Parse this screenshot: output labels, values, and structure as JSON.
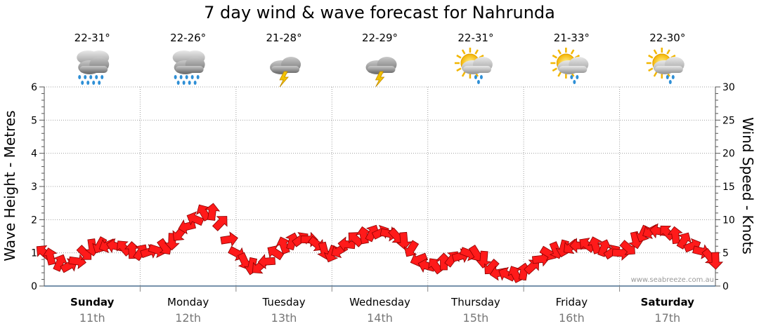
{
  "title": "7 day wind & wave forecast for Nahrunda",
  "credit": "www.seabreeze.com.au",
  "days": [
    {
      "name": "Sunday",
      "date": "11th",
      "temp": "22-31°",
      "icon": "rain-icon",
      "bold": true
    },
    {
      "name": "Monday",
      "date": "12th",
      "temp": "22-26°",
      "icon": "rain-icon",
      "bold": false
    },
    {
      "name": "Tuesday",
      "date": "13th",
      "temp": "21-28°",
      "icon": "storm-icon",
      "bold": false
    },
    {
      "name": "Wednesday",
      "date": "14th",
      "temp": "22-29°",
      "icon": "storm-icon",
      "bold": false
    },
    {
      "name": "Thursday",
      "date": "15th",
      "temp": "22-31°",
      "icon": "sun-shower-icon",
      "bold": false
    },
    {
      "name": "Friday",
      "date": "16th",
      "temp": "21-33°",
      "icon": "sun-rain-icon",
      "bold": false
    },
    {
      "name": "Saturday",
      "date": "17th",
      "temp": "22-30°",
      "icon": "sun-shower-icon",
      "bold": true
    }
  ],
  "chart_data": {
    "type": "line",
    "ylabel": "Wave Height - Metres",
    "y2label": "Wind Speed - Knots",
    "ylim": [
      0,
      6
    ],
    "y2lim": [
      0,
      30
    ],
    "yticks": [
      "0",
      "1",
      "2",
      "3",
      "4",
      "5",
      "6"
    ],
    "y2ticks": [
      "0",
      "5",
      "10",
      "15",
      "20",
      "25",
      "30"
    ],
    "grid": true,
    "series": [
      {
        "name": "Wind Speed",
        "color": "#ff0000",
        "x_days": [
          0.0,
          0.25,
          0.5,
          0.75,
          1.0,
          1.25,
          1.5,
          1.75,
          2.0,
          2.25,
          2.5,
          2.75,
          3.0,
          3.25,
          3.5,
          3.75,
          4.0,
          4.25,
          4.5,
          4.75,
          5.0,
          5.25,
          5.5,
          5.75,
          6.0,
          6.25,
          6.5,
          6.75,
          7.0
        ],
        "knots": [
          5,
          3,
          6,
          6,
          5,
          6,
          9,
          11,
          5,
          3,
          6,
          7,
          5,
          7,
          8,
          7,
          3,
          4,
          5,
          2,
          2,
          5,
          6,
          6,
          5,
          8,
          8,
          6,
          4
        ]
      }
    ]
  }
}
